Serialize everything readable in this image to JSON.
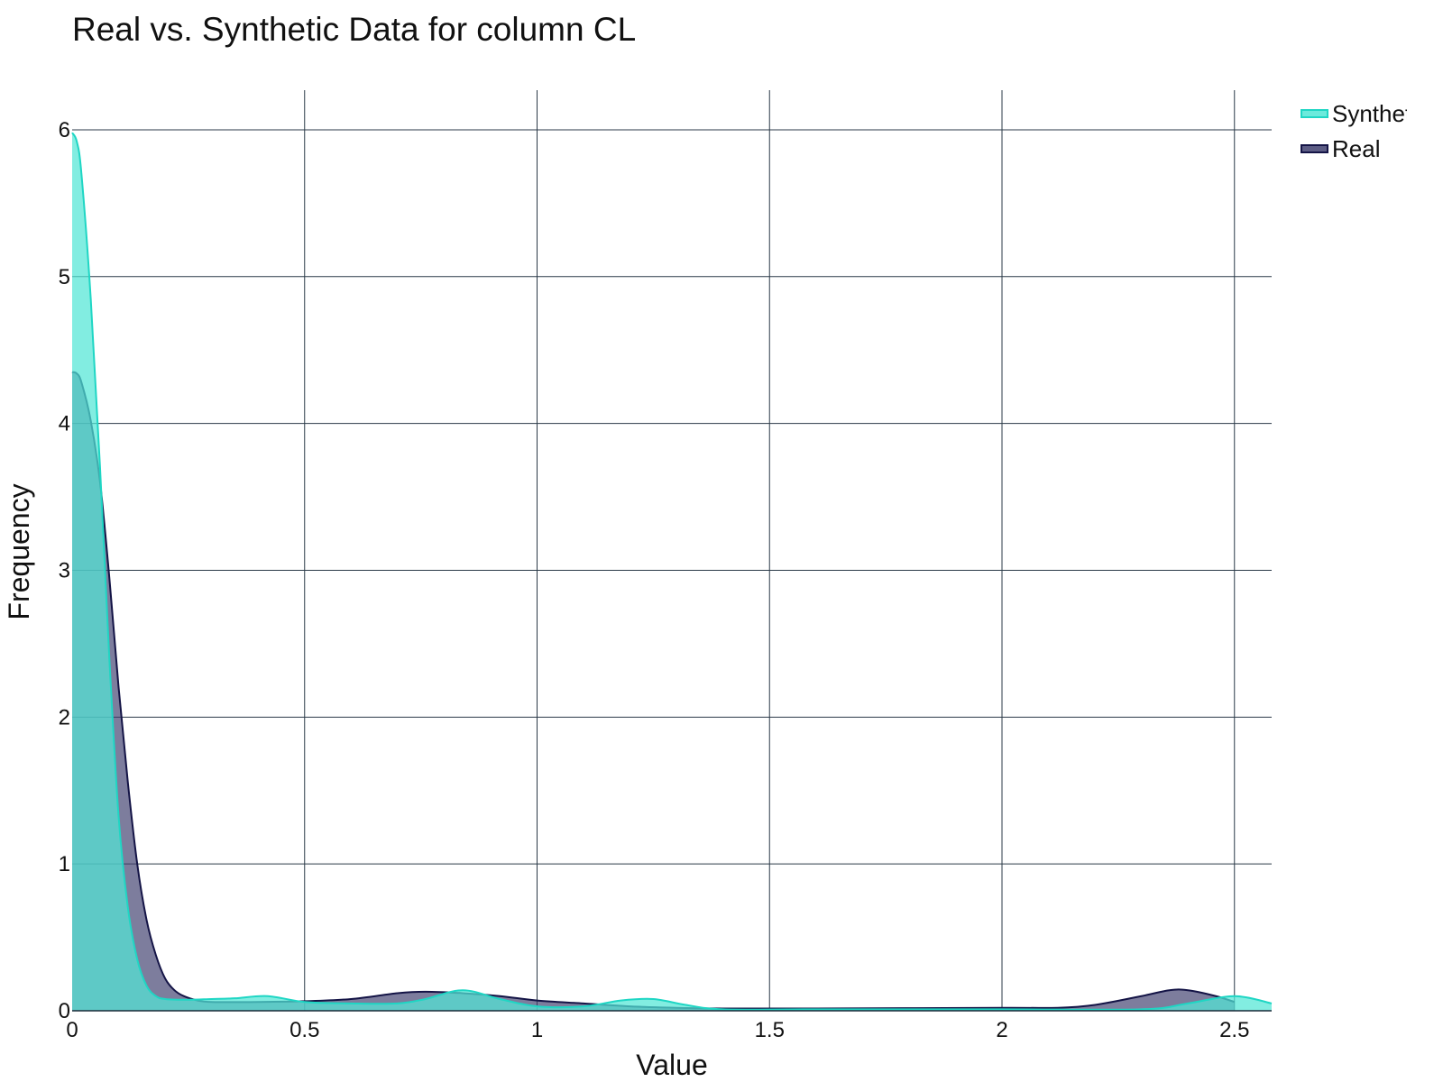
{
  "chart_data": {
    "type": "area",
    "title": "Real vs. Synthetic Data for column CL",
    "xlabel": "Value",
    "ylabel": "Frequency",
    "xlim": [
      0,
      2.58
    ],
    "ylim": [
      0,
      6.27
    ],
    "x_ticks": [
      0,
      0.5,
      1,
      1.5,
      2,
      2.5
    ],
    "x_tick_labels": [
      "0",
      "0.5",
      "1",
      "1.5",
      "2",
      "2.5"
    ],
    "y_ticks": [
      0,
      1,
      2,
      3,
      4,
      5,
      6
    ],
    "y_tick_labels": [
      "0",
      "1",
      "2",
      "3",
      "4",
      "5",
      "6"
    ],
    "grid": true,
    "legend_position": "top-right",
    "series": [
      {
        "name": "Synthetic",
        "color": "#1fd6c4",
        "fill": "#52e6d6",
        "x": [
          0,
          0.01,
          0.02,
          0.04,
          0.06,
          0.08,
          0.1,
          0.12,
          0.14,
          0.16,
          0.18,
          0.2,
          0.25,
          0.3,
          0.35,
          0.42,
          0.5,
          0.6,
          0.7,
          0.76,
          0.84,
          0.92,
          1.0,
          1.1,
          1.18,
          1.25,
          1.32,
          1.4,
          1.6,
          2.0,
          2.3,
          2.4,
          2.5,
          2.58
        ],
        "values": [
          5.98,
          5.92,
          5.7,
          4.85,
          3.7,
          2.4,
          1.32,
          0.7,
          0.35,
          0.17,
          0.1,
          0.08,
          0.075,
          0.08,
          0.085,
          0.1,
          0.06,
          0.05,
          0.05,
          0.08,
          0.14,
          0.08,
          0.03,
          0.03,
          0.07,
          0.08,
          0.04,
          0.01,
          0.01,
          0.01,
          0.01,
          0.05,
          0.1,
          0.05
        ]
      },
      {
        "name": "Real",
        "color": "#141446",
        "fill": "#3f3f6e",
        "x": [
          0,
          0.01,
          0.02,
          0.04,
          0.06,
          0.08,
          0.1,
          0.12,
          0.14,
          0.16,
          0.18,
          0.2,
          0.22,
          0.24,
          0.27,
          0.3,
          0.4,
          0.5,
          0.6,
          0.7,
          0.76,
          0.84,
          0.92,
          1.0,
          1.1,
          1.2,
          1.3,
          1.4,
          1.6,
          2.0,
          2.12,
          2.2,
          2.3,
          2.36,
          2.4,
          2.46,
          2.5
        ],
        "values": [
          4.35,
          4.34,
          4.28,
          4.02,
          3.6,
          2.95,
          2.2,
          1.55,
          1.0,
          0.62,
          0.38,
          0.22,
          0.14,
          0.1,
          0.07,
          0.06,
          0.06,
          0.065,
          0.08,
          0.12,
          0.13,
          0.12,
          0.1,
          0.07,
          0.05,
          0.03,
          0.02,
          0.015,
          0.015,
          0.02,
          0.02,
          0.04,
          0.1,
          0.14,
          0.14,
          0.1,
          0.06
        ]
      }
    ]
  }
}
